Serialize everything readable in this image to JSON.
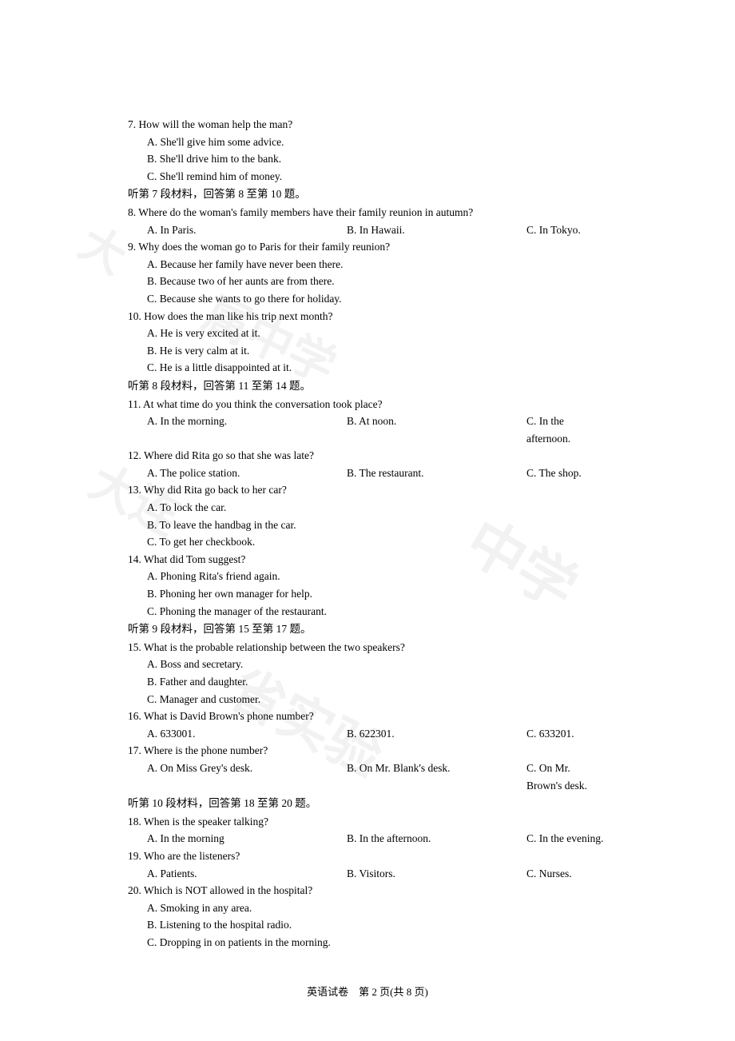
{
  "watermarks": {
    "wm1": "大",
    "wm2": "属中学",
    "wm3": "大连",
    "wm4": "中学",
    "wm5": "省实验"
  },
  "q7": {
    "text": "7. How will the woman help the man?",
    "a": "A. She'll give him some advice.",
    "b": "B. She'll drive him to the bank.",
    "c": "C. She'll remind him of money."
  },
  "section7": "听第 7 段材料，回答第 8 至第 10 题。",
  "q8": {
    "text": "8. Where do the woman's family members have their family reunion in autumn?",
    "a": "A. In Paris.",
    "b": "B. In Hawaii.",
    "c": "C. In Tokyo."
  },
  "q9": {
    "text": "9. Why does the woman go to Paris for their family reunion?",
    "a": "A. Because her family have never been there.",
    "b": "B. Because two of her aunts are from there.",
    "c": "C. Because she wants to go there for holiday."
  },
  "q10": {
    "text": "10. How does the man like his trip next month?",
    "a": "A. He is very excited at it.",
    "b": "B. He is very calm at it.",
    "c": "C. He is a little disappointed at it."
  },
  "section8": "听第 8 段材料，回答第 11 至第 14 题。",
  "q11": {
    "text": "11. At what time do you think the conversation took place?",
    "a": "A. In the morning.",
    "b": "B. At noon.",
    "c": "C. In the afternoon."
  },
  "q12": {
    "text": "12. Where did Rita go so that she was late?",
    "a": "A. The police station.",
    "b": "B. The restaurant.",
    "c": "C. The shop."
  },
  "q13": {
    "text": "13. Why did Rita go back to her car?",
    "a": "A. To lock the car.",
    "b": "B. To leave the handbag in the car.",
    "c": "C. To get her checkbook."
  },
  "q14": {
    "text": "14. What did Tom suggest?",
    "a": "A. Phoning Rita's friend again.",
    "b": "B. Phoning her own manager for help.",
    "c": "C. Phoning the manager of the restaurant."
  },
  "section9": "听第 9 段材料，回答第 15 至第 17 题。",
  "q15": {
    "text": "15. What is the probable relationship between the two speakers?",
    "a": "A. Boss and secretary.",
    "b": "B. Father and daughter.",
    "c": "C. Manager and customer."
  },
  "q16": {
    "text": "16. What is David Brown's phone number?",
    "a": "A. 633001.",
    "b": "B. 622301.",
    "c": "C. 633201."
  },
  "q17": {
    "text": "17. Where is the phone number?",
    "a": "A. On Miss Grey's desk.",
    "b": "B. On Mr.  Blank's desk.",
    "c": "C. On Mr.  Brown's desk."
  },
  "section10": "听第 10 段材料，回答第 18 至第 20 题。",
  "q18": {
    "text": "18. When is the speaker talking?",
    "a": "A. In the morning",
    "b": "B. In the afternoon.",
    "c": "C. In the evening."
  },
  "q19": {
    "text": "19. Who are the listeners?",
    "a": "A. Patients.",
    "b": "B. Visitors.",
    "c": "C. Nurses."
  },
  "q20": {
    "text": "20. Which is NOT allowed in the hospital?",
    "a": "A. Smoking in any area.",
    "b": "B. Listening to the hospital radio.",
    "c": "C. Dropping in on patients in the morning."
  },
  "footer": "英语试卷　第 2 页(共 8 页)"
}
